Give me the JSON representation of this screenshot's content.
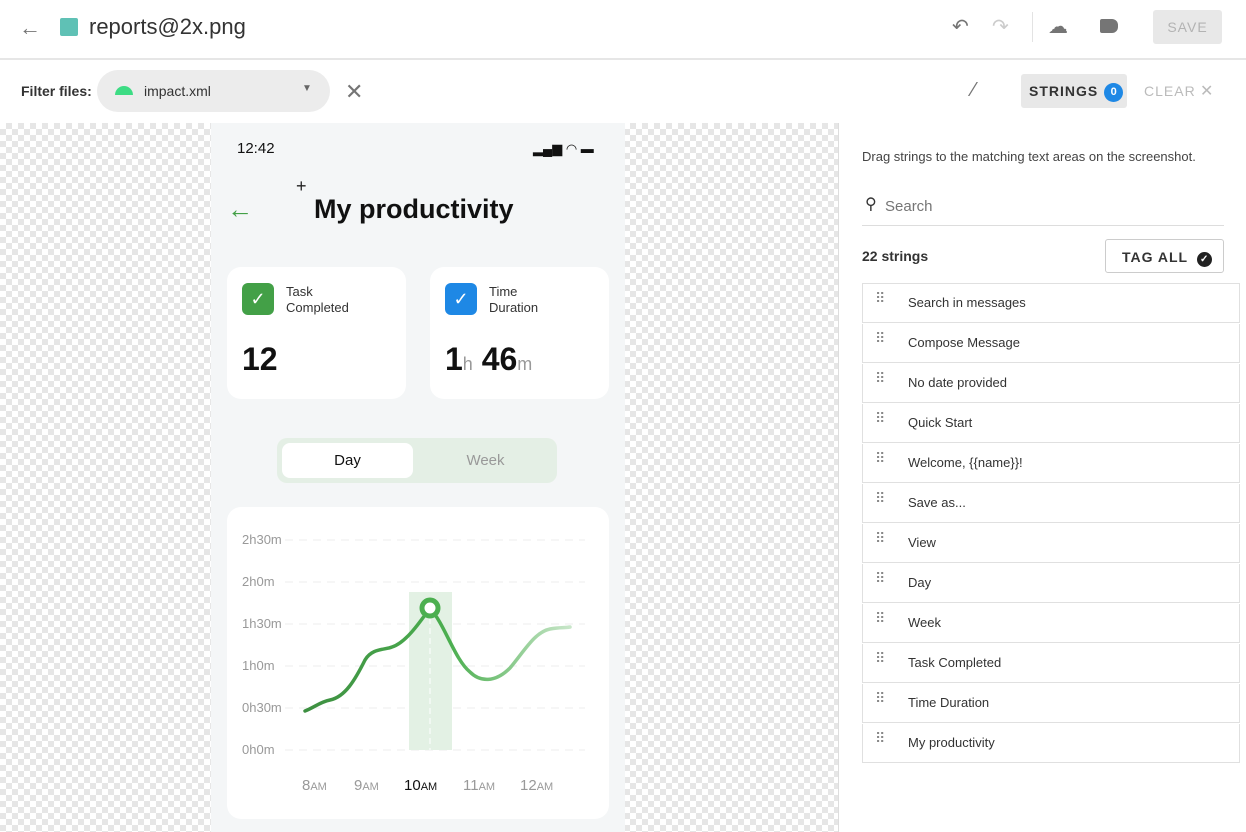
{
  "header": {
    "title": "reports@2x.png",
    "save_label": "SAVE"
  },
  "filter": {
    "label": "Filter files:",
    "selected_file": "impact.xml"
  },
  "toolbar": {
    "strings_label": "STRINGS",
    "strings_count": "0",
    "clear_label": "CLEAR"
  },
  "phone": {
    "time": "12:42",
    "title": "My productivity",
    "cards": [
      {
        "label_line1": "Task",
        "label_line2": "Completed",
        "value": "12",
        "color": "#43a047"
      },
      {
        "label_line1": "Time",
        "label_line2": "Duration",
        "hours": "1",
        "h_unit": "h",
        "minutes": "46",
        "m_unit": "m",
        "color": "#1e88e5"
      }
    ],
    "tabs": [
      {
        "label": "Day",
        "active": true
      },
      {
        "label": "Week",
        "active": false
      }
    ]
  },
  "chart_data": {
    "type": "line",
    "y_ticks": [
      "2h30m",
      "2h0m",
      "1h30m",
      "1h0m",
      "0h30m",
      "0h0m"
    ],
    "x_ticks": [
      {
        "num": "8",
        "unit": "AM"
      },
      {
        "num": "9",
        "unit": "AM"
      },
      {
        "num": "10",
        "unit": "AM"
      },
      {
        "num": "11",
        "unit": "AM"
      },
      {
        "num": "12",
        "unit": "AM"
      }
    ],
    "highlighted_x": "10AM",
    "line_color": "#43a047",
    "grid": true
  },
  "panel": {
    "hint": "Drag strings to the matching text areas on the screenshot.",
    "search_placeholder": "Search",
    "count_label": "22 strings",
    "tag_all_label": "TAG ALL",
    "strings": [
      "Search in messages",
      "Compose Message",
      "No date provided",
      "Quick Start",
      "Welcome, {{name}}!",
      "Save as...",
      "View",
      "Day",
      "Week",
      "Task Completed",
      "Time Duration",
      "My productivity"
    ]
  }
}
